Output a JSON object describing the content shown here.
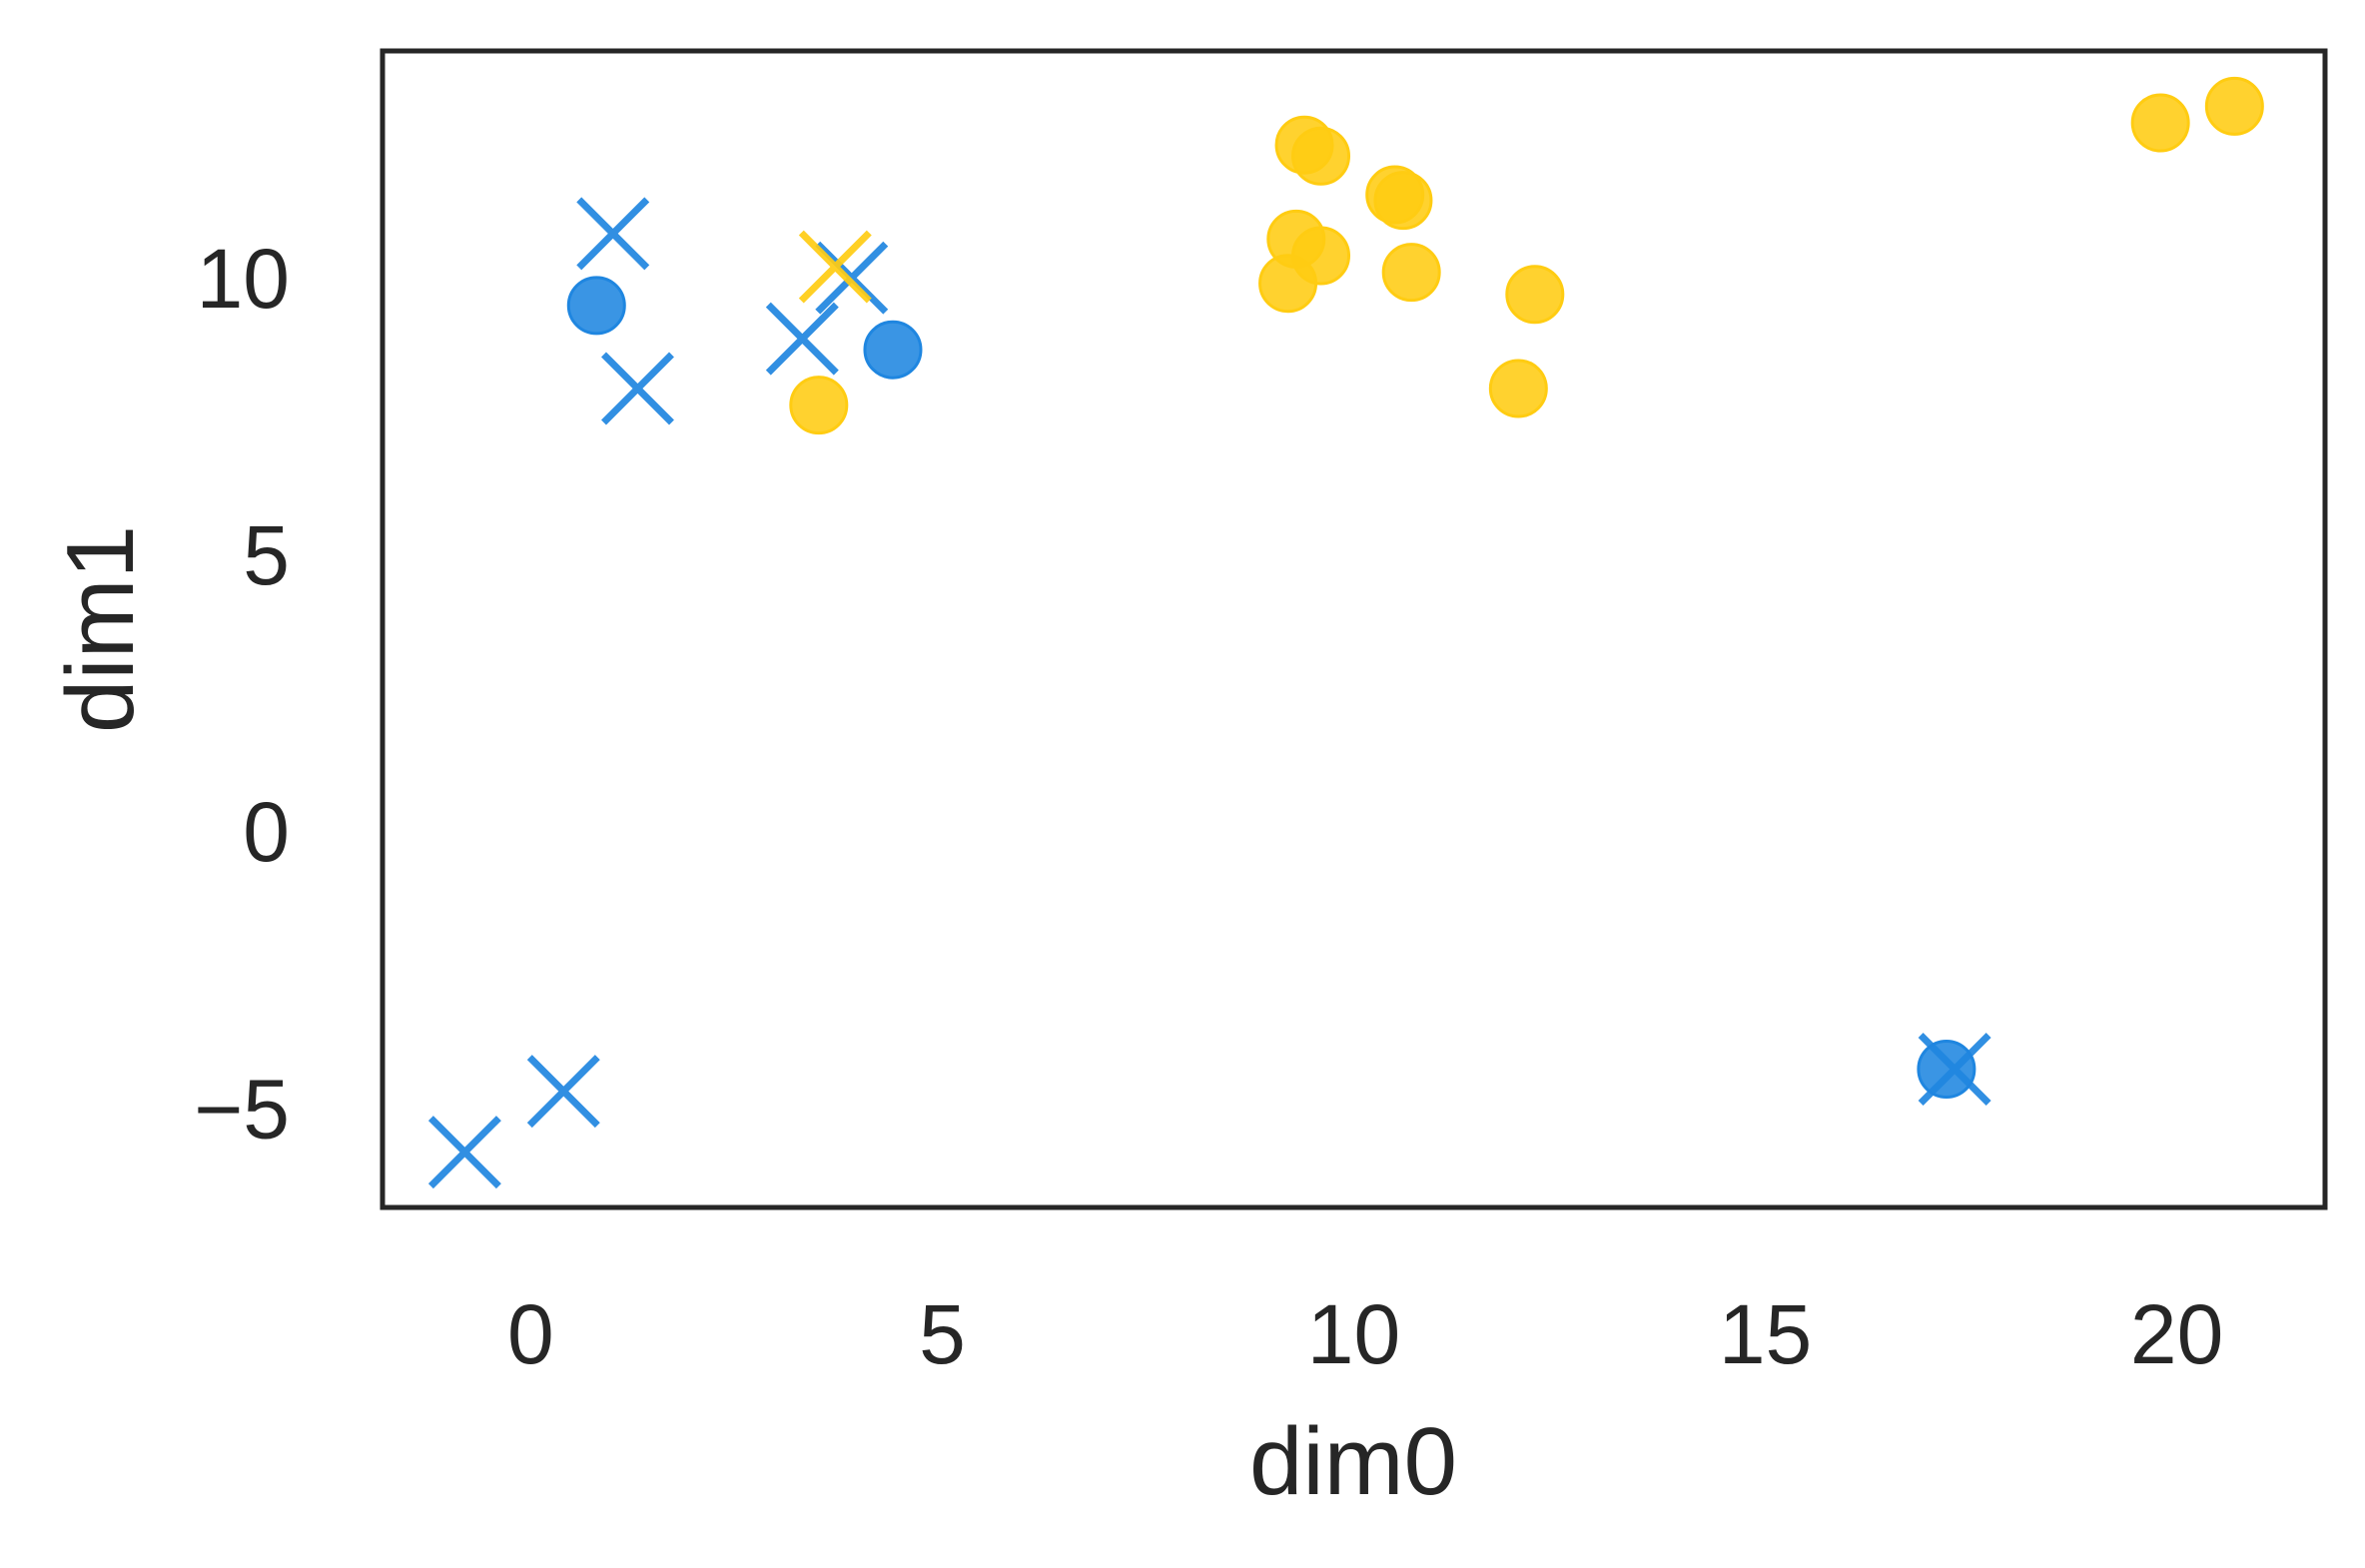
{
  "chart_data": {
    "type": "scatter",
    "title": "",
    "xlabel": "dim0",
    "ylabel": "dim1",
    "xlim": [
      -1.8,
      21.8
    ],
    "ylim": [
      -6.8,
      14.1
    ],
    "xticks": [
      0,
      5,
      10,
      15,
      20
    ],
    "yticks": [
      -5,
      0,
      5,
      10
    ],
    "xtick_labels": [
      "0",
      "5",
      "10",
      "15",
      "20"
    ],
    "ytick_labels": [
      "−5",
      "0",
      "5",
      "10"
    ],
    "grid": false,
    "legend": "none",
    "colors": {
      "blue": "#1f86e0",
      "yellow": "#ffcc12",
      "frame": "#262626"
    },
    "series": [
      {
        "color": "blue",
        "marker": "circle",
        "points": [
          [
            0.8,
            9.5
          ],
          [
            4.4,
            8.7
          ],
          [
            17.2,
            -4.3
          ]
        ]
      },
      {
        "color": "blue",
        "marker": "x",
        "points": [
          [
            1.0,
            10.8
          ],
          [
            1.3,
            8.0
          ],
          [
            3.3,
            8.9
          ],
          [
            3.9,
            10.0
          ],
          [
            0.4,
            -4.7
          ],
          [
            -0.8,
            -5.8
          ],
          [
            17.3,
            -4.3
          ]
        ]
      },
      {
        "color": "yellow",
        "marker": "circle",
        "points": [
          [
            3.5,
            7.7
          ],
          [
            9.2,
            9.9
          ],
          [
            9.3,
            10.7
          ],
          [
            9.6,
            10.4
          ],
          [
            9.4,
            12.4
          ],
          [
            9.6,
            12.2
          ],
          [
            10.5,
            11.5
          ],
          [
            10.6,
            11.4
          ],
          [
            10.7,
            10.1
          ],
          [
            12.2,
            9.7
          ],
          [
            12.0,
            8.0
          ],
          [
            19.8,
            12.8
          ],
          [
            20.7,
            13.1
          ]
        ]
      },
      {
        "color": "yellow",
        "marker": "x",
        "points": [
          [
            3.7,
            10.2
          ]
        ]
      }
    ]
  }
}
